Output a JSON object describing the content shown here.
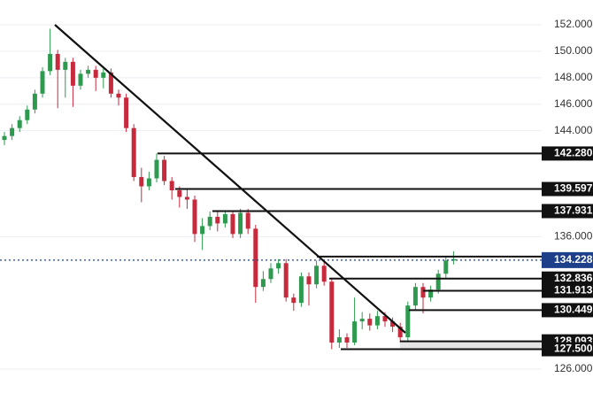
{
  "chart_data": {
    "type": "candlestick",
    "ylim": [
      124.193,
      153.872
    ],
    "yticks": [
      {
        "value": 126,
        "label": "126.000"
      },
      {
        "value": 136,
        "label": "136.000"
      },
      {
        "value": 144,
        "label": "144.000"
      },
      {
        "value": 146,
        "label": "146.000"
      },
      {
        "value": 148,
        "label": "148.000"
      },
      {
        "value": 150,
        "label": "150.000"
      },
      {
        "value": 152,
        "label": "152.000"
      }
    ],
    "grid": true,
    "up_color": "#2e9a4f",
    "down_color": "#c62a3c",
    "open": [
      143.3,
      143.6,
      144.2,
      144.8,
      145.6,
      146.8,
      148.5,
      149.8,
      148.6,
      149.2,
      147.4,
      148.3,
      148.6,
      148.0,
      148.4,
      146.8,
      146.5,
      144.2,
      140.5,
      139.8,
      140.4,
      141.8,
      140.2,
      139.5,
      139.0,
      138.8,
      136.2,
      136.8,
      137.5,
      137.0,
      137.7,
      136.2,
      137.8,
      136.6,
      132.2,
      132.8,
      133.6,
      134.0,
      131.4,
      131.0,
      133.0,
      132.4,
      133.8,
      132.6,
      128.0,
      128.4,
      128.0,
      129.6,
      129.8,
      129.3,
      130.0,
      129.6,
      129.2,
      128.4,
      130.8,
      132.2,
      131.4,
      132.0,
      133.2,
      134.2
    ],
    "high": [
      143.9,
      144.5,
      145.1,
      145.9,
      147.1,
      148.8,
      151.7,
      150.1,
      149.5,
      149.5,
      148.6,
      148.9,
      148.9,
      148.7,
      148.7,
      147.1,
      146.8,
      144.5,
      141.2,
      140.9,
      142.3,
      142.1,
      140.5,
      139.8,
      139.6,
      139.1,
      137.4,
      137.9,
      138.0,
      138.0,
      138.0,
      138.1,
      138.1,
      136.9,
      133.4,
      134.0,
      134.3,
      134.3,
      131.7,
      133.3,
      133.3,
      134.2,
      134.1,
      132.9,
      129.0,
      128.7,
      131.4,
      130.3,
      130.2,
      130.4,
      130.3,
      129.9,
      129.5,
      131.1,
      132.5,
      132.5,
      132.3,
      133.5,
      134.5,
      134.9
    ],
    "low": [
      142.9,
      143.3,
      143.9,
      144.5,
      145.3,
      146.5,
      148.2,
      145.7,
      146.5,
      145.8,
      147.1,
      148.0,
      147.0,
      147.2,
      146.5,
      145.9,
      143.9,
      140.2,
      138.6,
      139.5,
      140.1,
      139.9,
      138.8,
      138.2,
      138.1,
      135.6,
      135.0,
      136.5,
      136.4,
      136.7,
      135.9,
      135.9,
      136.2,
      131.0,
      131.9,
      132.5,
      133.2,
      131.1,
      130.4,
      130.7,
      130.8,
      132.1,
      132.3,
      127.5,
      127.6,
      127.6,
      127.8,
      129.0,
      128.9,
      129.0,
      129.2,
      128.8,
      128.0,
      128.1,
      130.5,
      130.2,
      131.1,
      131.7,
      132.9,
      133.9
    ],
    "close": [
      143.6,
      144.2,
      144.8,
      145.6,
      146.8,
      148.5,
      149.8,
      148.6,
      149.2,
      147.4,
      148.3,
      148.6,
      148.0,
      148.4,
      146.8,
      146.5,
      144.2,
      140.5,
      139.8,
      140.4,
      141.8,
      140.2,
      139.5,
      139.0,
      138.8,
      136.2,
      136.8,
      137.5,
      137.0,
      137.7,
      136.2,
      137.8,
      136.6,
      132.2,
      132.8,
      133.6,
      134.0,
      131.4,
      131.0,
      133.0,
      132.4,
      133.8,
      132.6,
      128.0,
      128.4,
      128.0,
      129.6,
      129.8,
      129.3,
      130.0,
      129.6,
      129.2,
      128.4,
      130.8,
      132.2,
      131.4,
      132.0,
      133.2,
      134.2,
      134.3
    ],
    "levels": [
      {
        "value": 142.28,
        "label": "142.280"
      },
      {
        "value": 139.597,
        "label": "139.597"
      },
      {
        "value": 137.931,
        "label": "137.931"
      },
      {
        "value": 132.836,
        "label": "132.836"
      },
      {
        "value": 131.913,
        "label": "131.913"
      },
      {
        "value": 130.449,
        "label": "130.449"
      },
      {
        "value": 128.093,
        "label": "128.093"
      },
      {
        "value": 127.5,
        "label": "127.500"
      }
    ],
    "current_price": {
      "value": 134.228,
      "label": "134.228",
      "color": "#1e3f8a"
    }
  }
}
